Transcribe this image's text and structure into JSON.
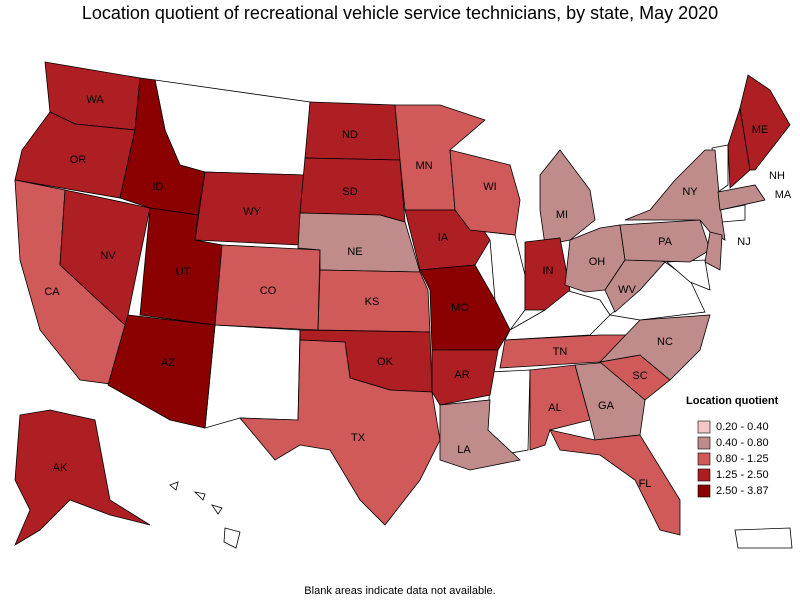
{
  "title": "Location quotient of recreational vehicle service technicians, by state, May 2020",
  "legend": {
    "title": "Location quotient",
    "items": [
      {
        "label": "0.20 - 0.40",
        "color": "#f5c6c6"
      },
      {
        "label": "0.40 - 0.80",
        "color": "#bf8b8b"
      },
      {
        "label": "0.80 - 1.25",
        "color": "#d05a5a"
      },
      {
        "label": "1.25 - 2.50",
        "color": "#ae1f24"
      },
      {
        "label": "2.50 - 3.87",
        "color": "#8b0000"
      }
    ]
  },
  "states": [
    {
      "label": "WA",
      "range": "1.25 - 2.50"
    },
    {
      "label": "OR",
      "range": "1.25 - 2.50"
    },
    {
      "label": "CA",
      "range": "0.80 - 1.25"
    },
    {
      "label": "NV",
      "range": "1.25 - 2.50"
    },
    {
      "label": "ID",
      "range": "2.50 - 3.87"
    },
    {
      "label": "WY",
      "range": "1.25 - 2.50"
    },
    {
      "label": "UT",
      "range": "2.50 - 3.87"
    },
    {
      "label": "AZ",
      "range": "2.50 - 3.87"
    },
    {
      "label": "CO",
      "range": "0.80 - 1.25"
    },
    {
      "label": "ND",
      "range": "1.25 - 2.50"
    },
    {
      "label": "SD",
      "range": "1.25 - 2.50"
    },
    {
      "label": "NE",
      "range": "0.40 - 0.80"
    },
    {
      "label": "KS",
      "range": "0.80 - 1.25"
    },
    {
      "label": "OK",
      "range": "1.25 - 2.50"
    },
    {
      "label": "TX",
      "range": "0.80 - 1.25"
    },
    {
      "label": "MN",
      "range": "0.80 - 1.25"
    },
    {
      "label": "IA",
      "range": "1.25 - 2.50"
    },
    {
      "label": "MO",
      "range": "2.50 - 3.87"
    },
    {
      "label": "AR",
      "range": "1.25 - 2.50"
    },
    {
      "label": "LA",
      "range": "0.40 - 0.80"
    },
    {
      "label": "WI",
      "range": "0.80 - 1.25"
    },
    {
      "label": "MI",
      "range": "0.40 - 0.80"
    },
    {
      "label": "IN",
      "range": "1.25 - 2.50"
    },
    {
      "label": "OH",
      "range": "0.40 - 0.80"
    },
    {
      "label": "TN",
      "range": "0.80 - 1.25"
    },
    {
      "label": "AL",
      "range": "0.80 - 1.25"
    },
    {
      "label": "GA",
      "range": "0.40 - 0.80"
    },
    {
      "label": "FL",
      "range": "0.80 - 1.25"
    },
    {
      "label": "SC",
      "range": "0.80 - 1.25"
    },
    {
      "label": "NC",
      "range": "0.40 - 0.80"
    },
    {
      "label": "WV",
      "range": "0.40 - 0.80"
    },
    {
      "label": "PA",
      "range": "0.40 - 0.80"
    },
    {
      "label": "NY",
      "range": "0.40 - 0.80"
    },
    {
      "label": "NH",
      "range": "1.25 - 2.50"
    },
    {
      "label": "ME",
      "range": "1.25 - 2.50"
    },
    {
      "label": "MA",
      "range": "0.40 - 0.80"
    },
    {
      "label": "NJ",
      "range": "0.40 - 0.80"
    },
    {
      "label": "AK",
      "range": "1.25 - 2.50"
    }
  ],
  "footnote": "Blank areas indicate data not available."
}
